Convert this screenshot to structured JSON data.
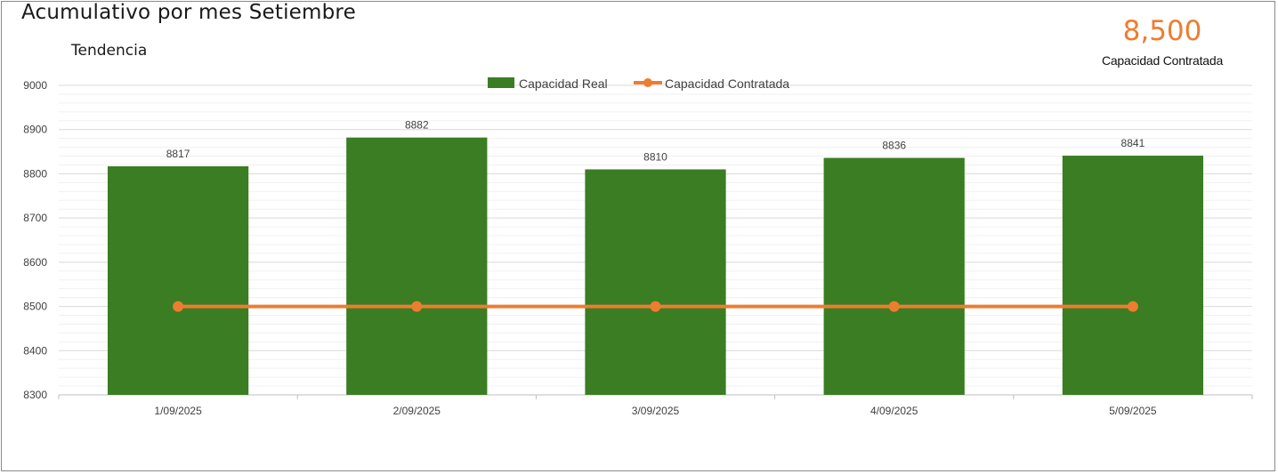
{
  "header": {
    "title": "Acumulativo por mes Setiembre",
    "subtitle": "Tendencia"
  },
  "kpi": {
    "value": "8,500",
    "label": "Capacidad Contratada"
  },
  "legend": {
    "bar_label": "Capacidad Real",
    "line_label": "Capacidad Contratada"
  },
  "colors": {
    "bar": "#3A7D23",
    "line": "#ED7D31",
    "kpi": "#ED7D31"
  },
  "chart_data": {
    "type": "bar",
    "title": "",
    "xlabel": "",
    "ylabel": "",
    "categories": [
      "1/09/2025",
      "2/09/2025",
      "3/09/2025",
      "4/09/2025",
      "5/09/2025"
    ],
    "series": [
      {
        "name": "Capacidad Real",
        "type": "bar",
        "values": [
          8817,
          8882,
          8810,
          8836,
          8841
        ],
        "data_labels": true
      },
      {
        "name": "Capacidad Contratada",
        "type": "line",
        "values": [
          8500,
          8500,
          8500,
          8500,
          8500
        ],
        "markers": true
      }
    ],
    "ylim": [
      8300,
      9000
    ],
    "yticks": [
      8300,
      8400,
      8500,
      8600,
      8700,
      8800,
      8900,
      9000
    ],
    "grid": true,
    "legend_position": "top"
  }
}
